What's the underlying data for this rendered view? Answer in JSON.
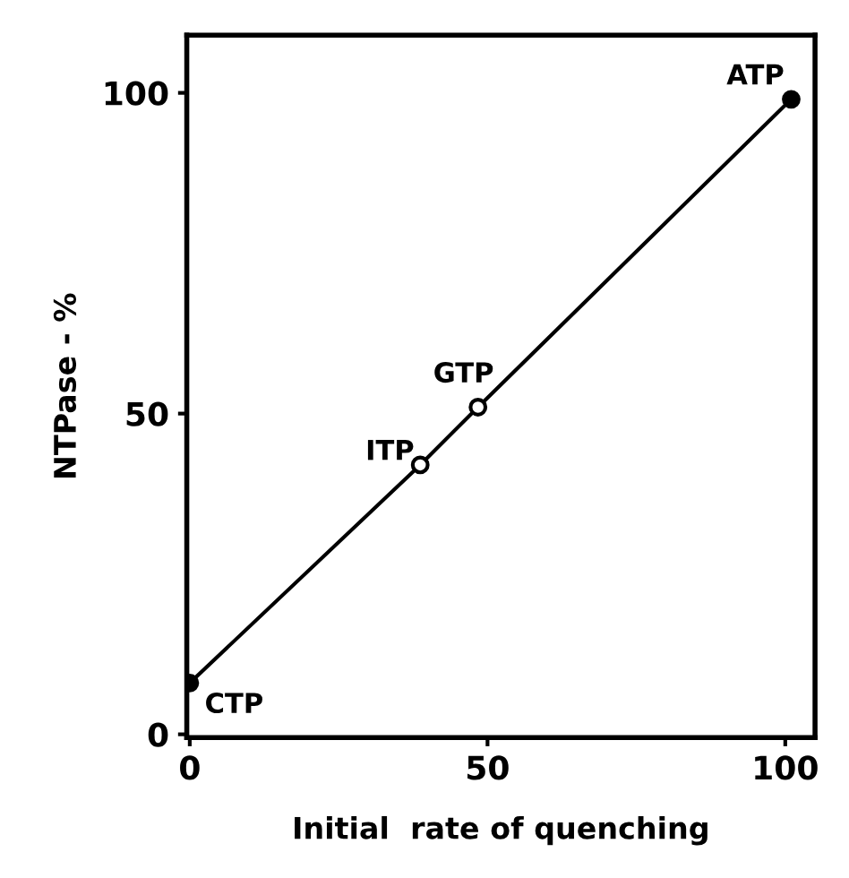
{
  "chart_data": {
    "type": "line",
    "xlabel": "Initial  rate of quenching",
    "ylabel": "NTPase - %",
    "xlim": [
      -0.5,
      105
    ],
    "ylim": [
      -0.5,
      109
    ],
    "xticks": [
      0,
      50,
      100
    ],
    "yticks": [
      0,
      50,
      100
    ],
    "grid": false,
    "legend": false,
    "marker": "circle",
    "line_style": "solid",
    "series": [
      {
        "color": "#000000",
        "x": [
          0,
          38.7,
          48.4,
          101
        ],
        "values": [
          8,
          42,
          51,
          99
        ],
        "colors": [
          "#000000",
          "#ffffff",
          "#ffffff",
          "#000000"
        ]
      }
    ],
    "annotations": [
      {
        "text": "CTP",
        "x": 0,
        "y": 8
      },
      {
        "text": "ITP",
        "x": 38.7,
        "y": 42
      },
      {
        "text": "GTP",
        "x": 48.4,
        "y": 51
      },
      {
        "text": "ATP",
        "x": 101,
        "y": 99
      }
    ]
  }
}
